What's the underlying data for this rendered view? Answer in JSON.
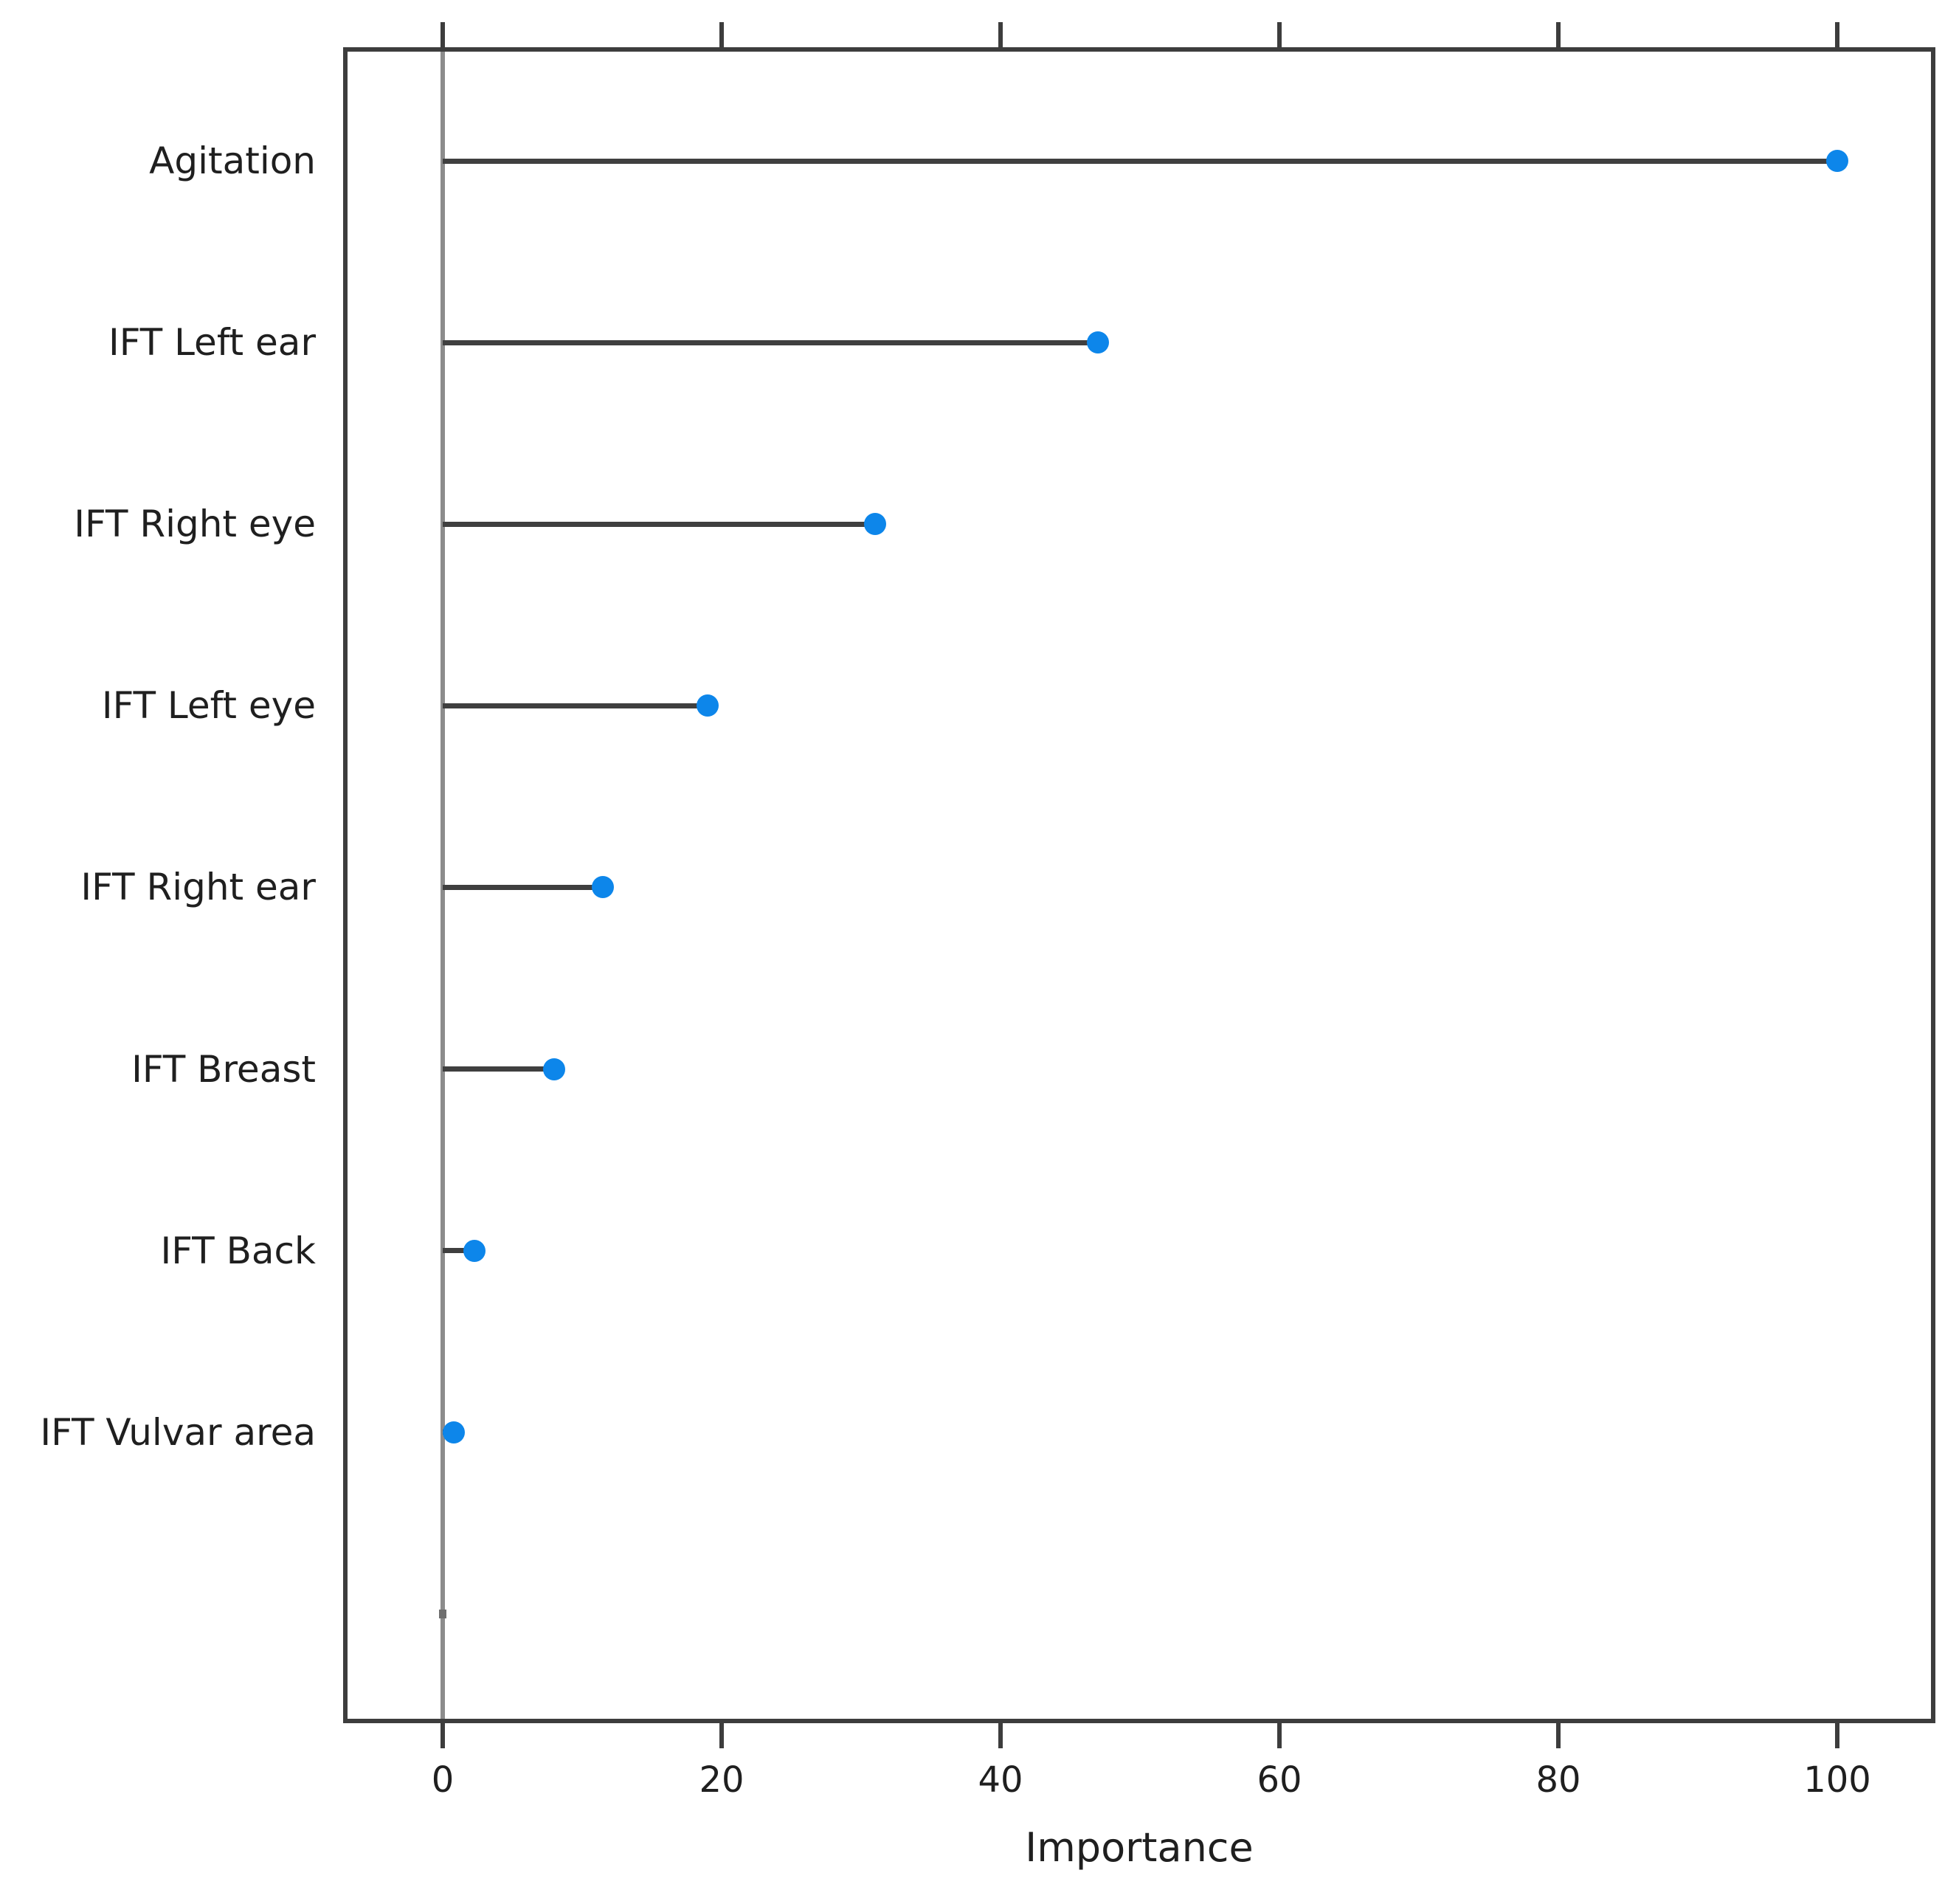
{
  "chart_data": {
    "type": "scatter",
    "subtype": "dot-plot-lollipop",
    "orientation": "horizontal",
    "title": "",
    "xlabel": "Importance",
    "ylabel": "",
    "xlim": [
      0,
      100
    ],
    "x_ticks": [
      0,
      20,
      40,
      60,
      80,
      100
    ],
    "grid": false,
    "legend": false,
    "rows": [
      {
        "label": "Agitation",
        "value": 100,
        "dot": true
      },
      {
        "label": "IFT Left ear",
        "value": 47,
        "dot": true
      },
      {
        "label": "IFT Right eye",
        "value": 31,
        "dot": true
      },
      {
        "label": "IFT Left eye",
        "value": 19,
        "dot": true
      },
      {
        "label": "IFT Right ear",
        "value": 11.5,
        "dot": true
      },
      {
        "label": "IFT Breast",
        "value": 8,
        "dot": true
      },
      {
        "label": "IFT Back",
        "value": 2.3,
        "dot": true
      },
      {
        "label": "IFT Vulvar area",
        "value": 0.8,
        "dot": true
      },
      {
        "label": "",
        "value": 0.2,
        "dot": false
      }
    ],
    "colors": {
      "dot": "#0d86ea",
      "line": "#3f3f3f",
      "frame": "#3d3d3d",
      "zero_line": "#8c8c8c",
      "stub_mark": "#6f6f6f",
      "text": "#1f1f1f",
      "background": "#ffffff"
    }
  }
}
